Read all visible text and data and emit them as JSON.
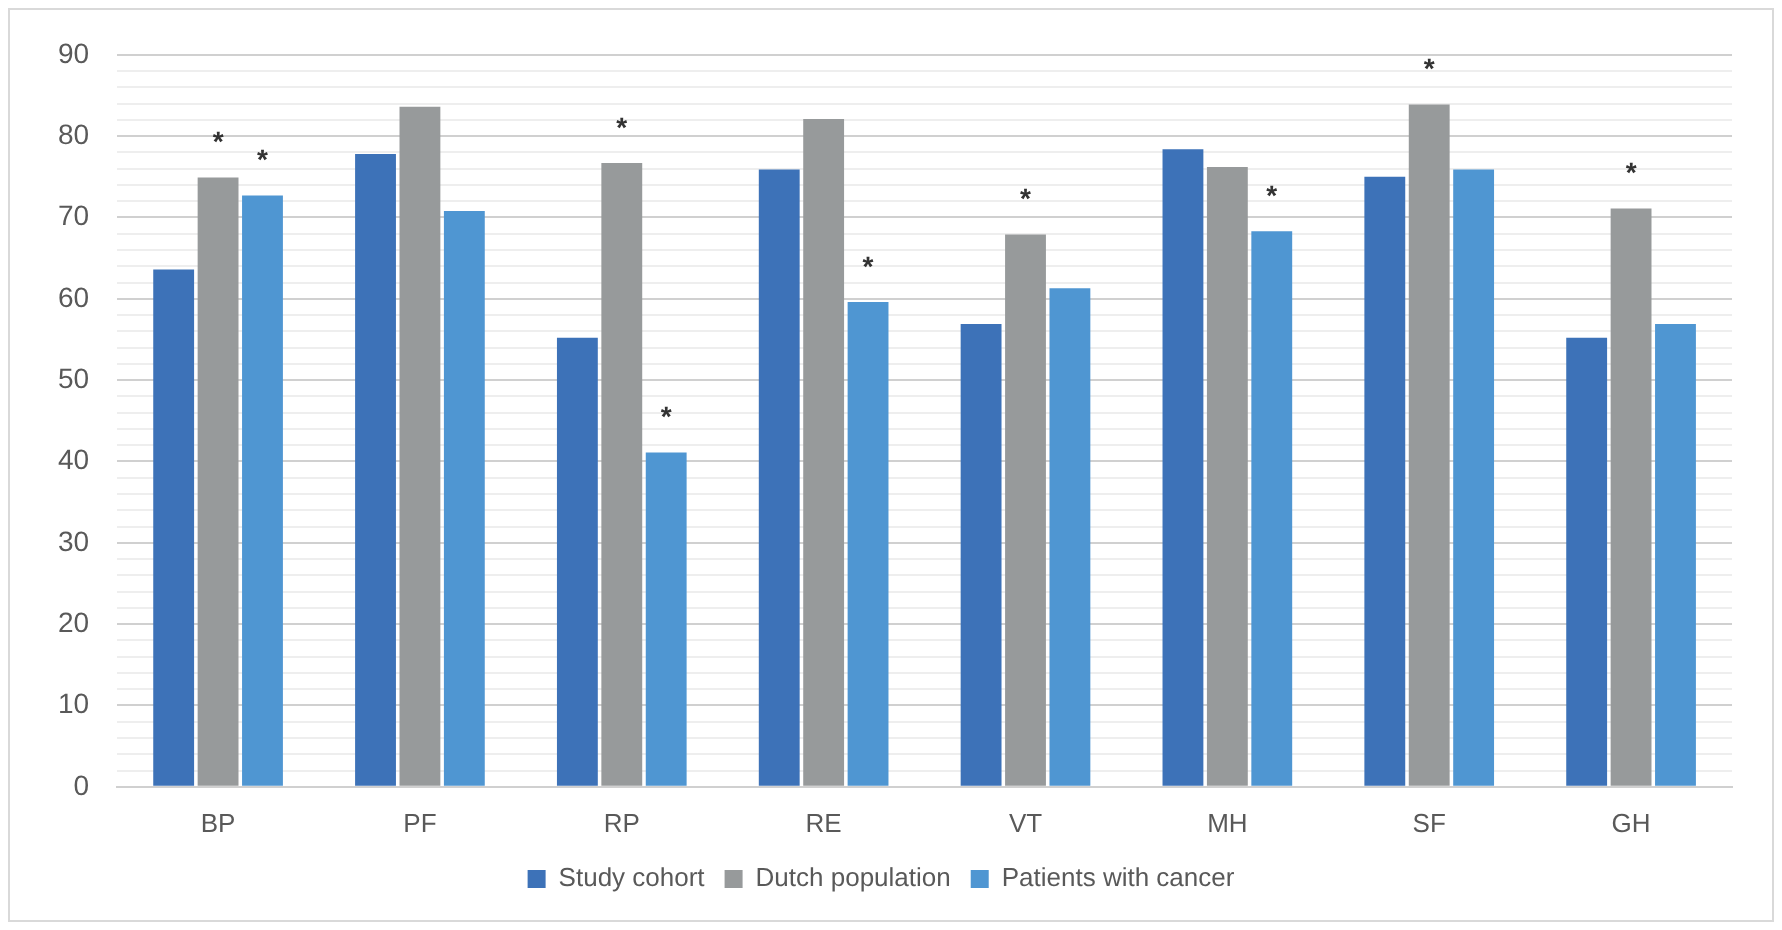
{
  "chart_data": {
    "type": "bar",
    "categories": [
      "BP",
      "PF",
      "RP",
      "RE",
      "VT",
      "MH",
      "SF",
      "GH"
    ],
    "series": [
      {
        "name": "Study cohort",
        "color": "#3d72b8",
        "values": [
          63.6,
          77.8,
          55.2,
          75.9,
          56.9,
          78.4,
          75.0,
          55.2
        ]
      },
      {
        "name": "Dutch population",
        "color": "#979a9b",
        "values": [
          74.9,
          83.6,
          76.7,
          82.1,
          67.9,
          76.2,
          83.9,
          71.1
        ],
        "value_labels": [
          "*",
          null,
          "*",
          null,
          "*",
          null,
          "*",
          "*"
        ]
      },
      {
        "name": "Patients with cancer",
        "color": "#4f96d2",
        "values": [
          72.7,
          70.8,
          41.1,
          59.6,
          61.3,
          68.3,
          75.9,
          56.9
        ],
        "value_labels": [
          "*",
          null,
          "*",
          "*",
          null,
          "*",
          null,
          null
        ]
      }
    ],
    "ylim": [
      0,
      90
    ],
    "yticks": [
      0,
      {
        "value": 2,
        "label": null
      },
      {
        "value": 4,
        "label": null
      },
      {
        "value": 6,
        "label": null
      },
      {
        "value": 8,
        "label": null
      },
      10,
      {
        "value": 12,
        "label": null
      },
      {
        "value": 14,
        "label": null
      },
      {
        "value": 16,
        "label": null
      },
      {
        "value": 18,
        "label": null
      },
      20,
      {
        "value": 22,
        "label": null
      },
      {
        "value": 24,
        "label": null
      },
      {
        "value": 26,
        "label": null
      },
      {
        "value": 28,
        "label": null
      },
      30,
      {
        "value": 32,
        "label": null
      },
      {
        "value": 34,
        "label": null
      },
      {
        "value": 36,
        "label": null
      },
      {
        "value": 38,
        "label": null
      },
      40,
      {
        "value": 42,
        "label": null
      },
      {
        "value": 44,
        "label": null
      },
      {
        "value": 46,
        "label": null
      },
      {
        "value": 48,
        "label": null
      },
      50,
      {
        "value": 52,
        "label": null
      },
      {
        "value": 54,
        "label": null
      },
      {
        "value": 56,
        "label": null
      },
      {
        "value": 58,
        "label": null
      },
      60,
      {
        "value": 62,
        "label": null
      },
      {
        "value": 64,
        "label": null
      },
      {
        "value": 66,
        "label": null
      },
      {
        "value": 68,
        "label": null
      },
      70,
      {
        "value": 72,
        "label": null
      },
      {
        "value": 74,
        "label": null
      },
      {
        "value": 76,
        "label": null
      },
      {
        "value": 78,
        "label": null
      },
      80,
      {
        "value": 82,
        "label": null
      },
      {
        "value": 84,
        "label": null
      },
      {
        "value": 86,
        "label": null
      },
      {
        "value": 88,
        "label": null
      },
      90
    ],
    "grid": "y",
    "legend": "bottom"
  }
}
